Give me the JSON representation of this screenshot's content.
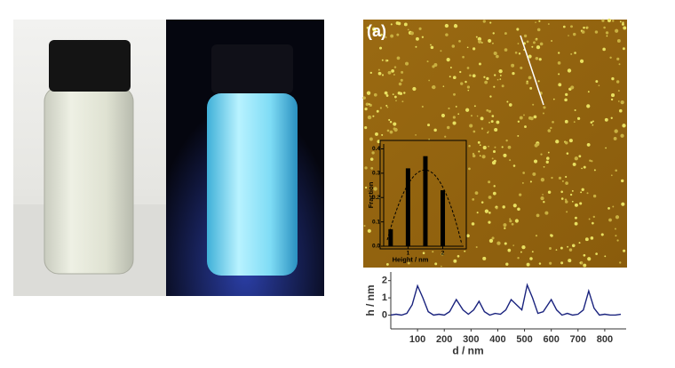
{
  "panel_label": "(a)",
  "chart_data": [
    {
      "type": "bar",
      "xlabel": "Height / nm",
      "ylabel": "Fraction",
      "x": [
        0.5,
        1.0,
        1.5,
        2.0
      ],
      "values": [
        0.07,
        0.32,
        0.37,
        0.23
      ],
      "color": "#000000",
      "xlim": [
        0.3,
        2.6
      ],
      "xticks": [
        1,
        2
      ],
      "ylim": [
        0,
        0.42
      ],
      "yticks": [
        {
          "value": 0,
          "label": "0.0"
        },
        0.1,
        0.2,
        0.3,
        0.4
      ]
    },
    {
      "type": "line",
      "xlabel": "d / nm",
      "ylabel": "h / nm",
      "x": [
        0,
        20,
        40,
        60,
        80,
        100,
        120,
        140,
        160,
        180,
        200,
        220,
        245,
        270,
        290,
        310,
        330,
        350,
        370,
        390,
        410,
        430,
        450,
        470,
        490,
        510,
        530,
        550,
        570,
        600,
        620,
        640,
        660,
        680,
        700,
        720,
        740,
        760,
        780,
        800,
        820,
        840,
        860
      ],
      "values": [
        0.0,
        0.05,
        0.0,
        0.1,
        0.6,
        1.7,
        1.0,
        0.2,
        0.0,
        0.05,
        0.0,
        0.2,
        0.9,
        0.3,
        0.05,
        0.3,
        0.8,
        0.2,
        0.0,
        0.1,
        0.05,
        0.3,
        0.9,
        0.6,
        0.3,
        1.75,
        1.0,
        0.1,
        0.2,
        0.9,
        0.3,
        0.0,
        0.1,
        0.0,
        0.05,
        0.3,
        1.4,
        0.4,
        0.0,
        0.05,
        0.0,
        0.0,
        0.05
      ],
      "color": "#1a237e",
      "xlim": [
        0,
        880
      ],
      "xticks": [
        100,
        200,
        300,
        400,
        500,
        600,
        700,
        800
      ],
      "ylim": [
        -0.8,
        2.5
      ],
      "yticks": [
        0,
        1,
        2
      ]
    }
  ]
}
